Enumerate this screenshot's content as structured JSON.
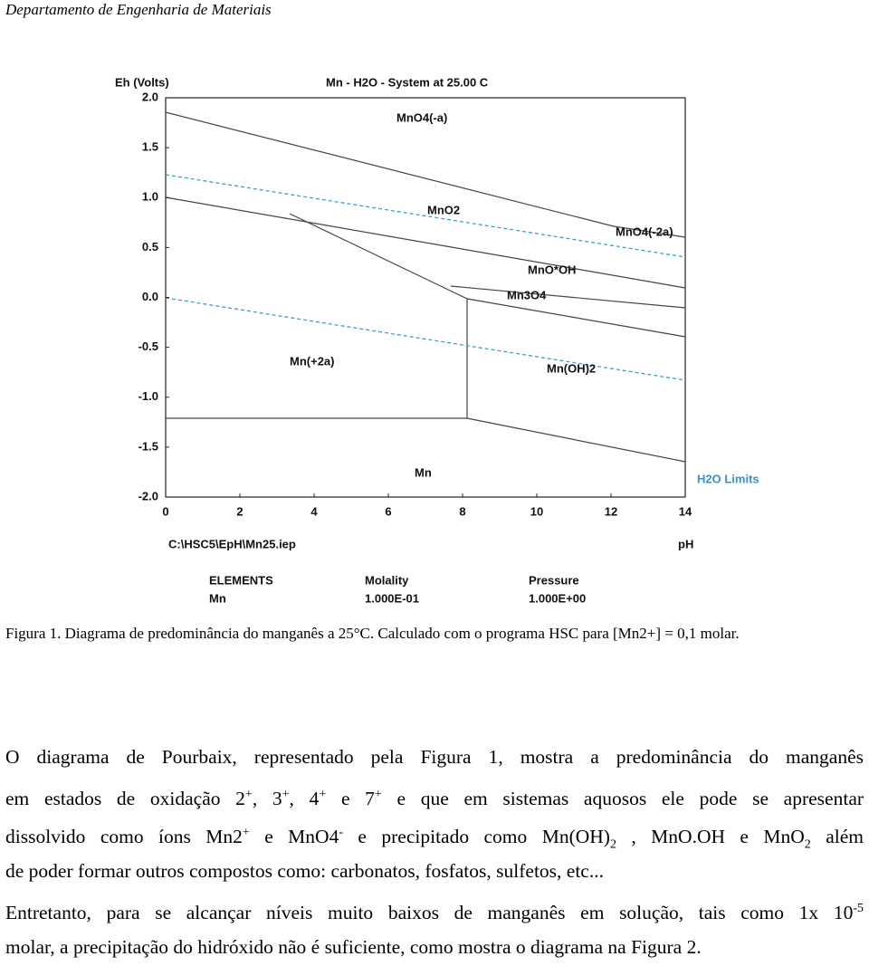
{
  "header": {
    "title": "Departamento de Engenharia de Materiais"
  },
  "figure": {
    "title": "Mn - H2O - System at 25.00 C",
    "y_label": "Eh (Volts)",
    "x_label": "pH",
    "xlim": [
      0,
      14
    ],
    "ylim": [
      -2,
      2
    ],
    "xticks": [
      0,
      2,
      4,
      6,
      8,
      10,
      12,
      14
    ],
    "yticks": [
      {
        "value": 2,
        "label": "2.0"
      },
      {
        "value": 1.5,
        "label": "1.5"
      },
      {
        "value": 1,
        "label": "1.0"
      },
      {
        "value": 0.5,
        "label": "0.5"
      },
      {
        "value": 0,
        "label": "0.0"
      },
      {
        "value": -0.5,
        "label": "-0.5"
      },
      {
        "value": -1,
        "label": "-1.0"
      },
      {
        "value": -1.5,
        "label": "-1.5"
      },
      {
        "value": -2,
        "label": "-2.0"
      }
    ],
    "regions": [
      "MnO4(-a)",
      "MnO2",
      "MnO4(-2a)",
      "MnO*OH",
      "Mn3O4",
      "Mn(+2a)",
      "Mn(OH)2",
      "Mn"
    ],
    "legend": "H2O Limits",
    "file": "C:\\HSC5\\EpH\\Mn25.iep",
    "table": {
      "headers": [
        "ELEMENTS",
        "Molality",
        "Pressure"
      ],
      "values": [
        "Mn",
        "1.000E-01",
        "1.000E+00"
      ]
    }
  },
  "caption": "Figura 1. Diagrama de predominância do manganês a 25°C. Calculado com o programa HSC para [Mn2+] = 0,1 molar.",
  "paragraph": {
    "lines": [
      [
        "O diagrama de Pourbaix, representado pela  Figura 1, mostra a predominância do manganês"
      ],
      [
        "em estados de oxidação 2",
        "+",
        ", 3",
        "+",
        ", 4",
        "+",
        " e 7",
        "+",
        " e que em sistemas aquosos ele pode se apresentar"
      ],
      [
        "dissolvido como íons Mn2",
        "+",
        " e MnO4",
        "-",
        " e precipitado como Mn(OH)",
        "2",
        " , MnO.OH e MnO",
        "2",
        " além"
      ],
      [
        "de poder formar outros compostos como: carbonatos, fosfatos, sulfetos, etc..."
      ],
      [
        "Entretanto, para se alcançar níveis muito baixos de manganês em solução, tais como 1x 10",
        "-5"
      ],
      [
        "molar, a precipitação do hidróxido não é suficiente, como mostra o diagrama na Figura 2."
      ]
    ]
  }
}
